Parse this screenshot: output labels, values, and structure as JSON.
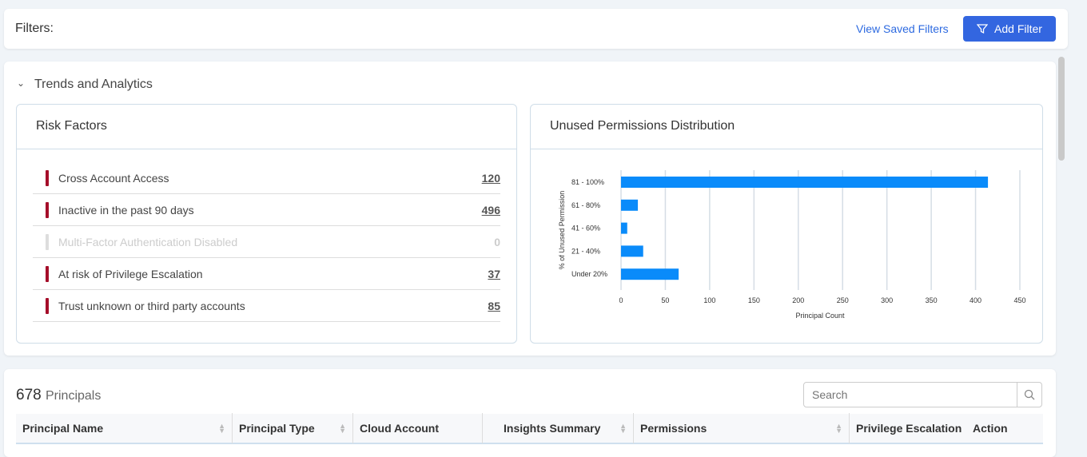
{
  "filters": {
    "label": "Filters:",
    "view_saved": "View Saved Filters",
    "add_filter": "Add Filter"
  },
  "trends": {
    "title": "Trends and Analytics",
    "risk": {
      "title": "Risk Factors",
      "items": [
        {
          "label": "Cross Account Access",
          "count": "120",
          "enabled": true
        },
        {
          "label": "Inactive in the past 90 days",
          "count": "496",
          "enabled": true
        },
        {
          "label": "Multi-Factor Authentication Disabled",
          "count": "0",
          "enabled": false
        },
        {
          "label": "At risk of Privilege Escalation",
          "count": "37",
          "enabled": true
        },
        {
          "label": "Trust unknown or third party accounts",
          "count": "85",
          "enabled": true
        }
      ]
    },
    "distribution": {
      "title": "Unused Permissions Distribution"
    }
  },
  "chart_data": {
    "type": "bar",
    "orientation": "horizontal",
    "title": "Unused Permissions Distribution",
    "categories": [
      "81 - 100%",
      "61 - 80%",
      "41 - 60%",
      "21 - 40%",
      "Under 20%"
    ],
    "values": [
      414,
      19,
      7,
      25,
      65
    ],
    "xlabel": "Principal Count",
    "ylabel": "% of Unused Permission",
    "xlim": [
      0,
      450
    ],
    "xticks": [
      0,
      50,
      100,
      150,
      200,
      250,
      300,
      350,
      400,
      450
    ],
    "grid": true,
    "color": "#0a8bfa"
  },
  "principals": {
    "count": "678",
    "label": "Principals",
    "search_placeholder": "Search",
    "columns": [
      "Principal Name",
      "Principal Type",
      "Cloud Account",
      "Insights Summary",
      "Permissions",
      "Privilege Escalation",
      "Action"
    ]
  }
}
